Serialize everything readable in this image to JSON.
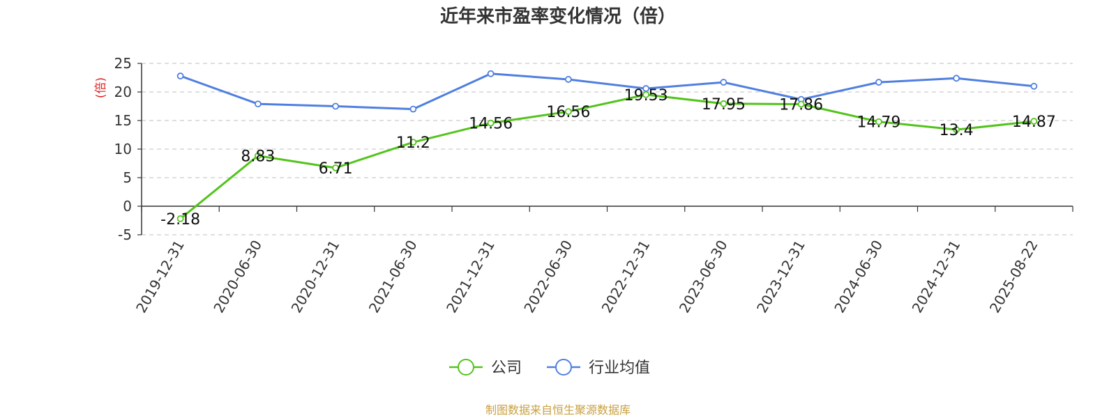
{
  "chart_data": {
    "type": "line",
    "title": "近年来市盈率变化情况（倍）",
    "ylabel": "(倍)",
    "xlabel": "",
    "categories": [
      "2019-12-31",
      "2020-06-30",
      "2020-12-31",
      "2021-06-30",
      "2021-12-31",
      "2022-06-30",
      "2022-12-31",
      "2023-06-30",
      "2023-12-31",
      "2024-06-30",
      "2024-12-31",
      "2025-08-22"
    ],
    "y_ticks": [
      "25",
      "20",
      "15",
      "10",
      "5",
      "0",
      "-5"
    ],
    "ylim": [
      -5,
      25
    ],
    "grid": true,
    "legend_position": "bottom-center",
    "series": [
      {
        "name": "公司",
        "color": "#52c41a",
        "values": [
          -2.18,
          8.83,
          6.71,
          11.2,
          14.56,
          16.56,
          19.53,
          17.95,
          17.86,
          14.79,
          13.4,
          14.87
        ],
        "data_labels": [
          "-2.18",
          "8.83",
          "6.71",
          "11.2",
          "14.56",
          "16.56",
          "19.53",
          "17.95",
          "17.86",
          "14.79",
          "13.4",
          "14.87"
        ]
      },
      {
        "name": "行业均值",
        "color": "#4f7fe0",
        "values": [
          22.8,
          17.9,
          17.5,
          17.0,
          23.2,
          22.2,
          20.6,
          21.7,
          18.7,
          21.7,
          22.4,
          21.0
        ]
      }
    ]
  },
  "footer": {
    "source": "制图数据来自恒生聚源数据库"
  }
}
